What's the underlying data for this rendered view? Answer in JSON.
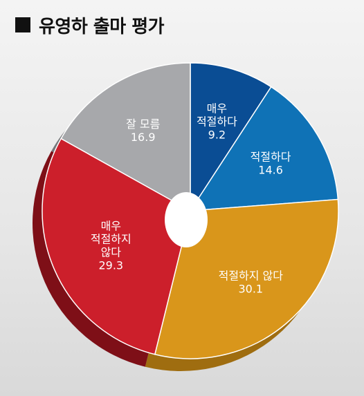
{
  "header": {
    "title": "유영하 출마 평가"
  },
  "chart_data": {
    "type": "pie",
    "title": "유영하 출마 평가",
    "slices": [
      {
        "label": [
          "매우",
          "적절하다"
        ],
        "value": 9.2,
        "value_label": "9.2",
        "color": "#0a4d94",
        "side": "#083668"
      },
      {
        "label": [
          "적절하다"
        ],
        "value": 14.6,
        "value_label": "14.6",
        "color": "#0f72b6",
        "side": "#0b5283"
      },
      {
        "label": [
          "적절하지 않다"
        ],
        "value": 30.1,
        "value_label": "30.1",
        "color": "#d9961b",
        "side": "#9f6d10"
      },
      {
        "label": [
          "매우",
          "적절하지",
          "않다"
        ],
        "value": 29.3,
        "value_label": "29.3",
        "color": "#cc1f2b",
        "side": "#7e0f17"
      },
      {
        "label": [
          "잘 모름"
        ],
        "value": 16.9,
        "value_label": "16.9",
        "color": "#a7a8ab",
        "side": "#76777a"
      }
    ]
  }
}
